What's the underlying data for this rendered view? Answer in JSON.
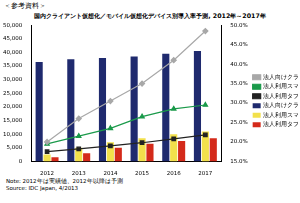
{
  "chart_data": {
    "type": "bar",
    "subtitle": "＜参考資料＞",
    "title": "国内クライアント仮想化／モバイル仮想化デバイス別導入率予測, 2012年～2017年",
    "annotations": [
      "Note: 2012年は実績値、2012年以降は予測",
      "Source: IDC Japan, 4/2013"
    ],
    "categories": [
      "2012",
      "2013",
      "2014",
      "2015",
      "2016",
      "2017"
    ],
    "series": [
      {
        "name": "法人向けクライアント累計稼働台数",
        "type": "bar",
        "color": "#1f2a6e",
        "values": [
          36500,
          37500,
          38000,
          38500,
          39500,
          40500
        ]
      },
      {
        "name": "法人利用スマートフォン加入者数",
        "type": "bar",
        "color": "#f2e04b",
        "values": [
          2500,
          5000,
          7000,
          8500,
          10000,
          11000
        ]
      },
      {
        "name": "法人利用タブレット稼働台数",
        "type": "bar",
        "color": "#d42a1a",
        "values": [
          1500,
          3000,
          5000,
          6500,
          7500,
          8500
        ]
      },
      {
        "name": "法人向けクライアント仮想化率",
        "type": "line",
        "axis": "y2",
        "color": "#a8a8a8",
        "marker": "diamond",
        "values": [
          20,
          26,
          30.5,
          35,
          41,
          48.5
        ]
      },
      {
        "name": "法人利用スマートフォン仮想化率",
        "type": "line",
        "axis": "y2",
        "color": "#1a9a4a",
        "marker": "triangle",
        "values": [
          19.5,
          21.5,
          23.5,
          26.5,
          28.5,
          29.5
        ]
      },
      {
        "name": "法人利用タブレット仮想化率",
        "type": "line",
        "axis": "y2",
        "color": "#222222",
        "marker": "square",
        "values": [
          17.5,
          18.2,
          19,
          19.8,
          20.8,
          21.8
        ]
      }
    ],
    "ylim": [
      0,
      50000
    ],
    "yticks": [
      0,
      {
        "value": 5000,
        "label": "5,000"
      },
      {
        "value": 10000,
        "label": "10,000"
      },
      {
        "value": 15000,
        "label": "15,000"
      },
      {
        "value": 20000,
        "label": "20,000"
      },
      {
        "value": 25000,
        "label": "25,000"
      },
      {
        "value": 30000,
        "label": "30,000"
      },
      {
        "value": 35000,
        "label": "35,000"
      },
      {
        "value": 40000,
        "label": "40,000"
      },
      {
        "value": 45000,
        "label": "45,000"
      },
      {
        "value": 50000,
        "label": "50,000"
      }
    ],
    "y2lim": [
      15,
      50
    ],
    "y2ticks": [
      {
        "value": 15,
        "label": "15.0%"
      },
      {
        "value": 20,
        "label": "20.0%"
      },
      {
        "value": 25,
        "label": "25.0%"
      },
      {
        "value": 30,
        "label": "30.0%"
      },
      {
        "value": 35,
        "label": "35.0%"
      },
      {
        "value": 40,
        "label": "40.0%"
      },
      {
        "value": 45,
        "label": "45.0%"
      },
      {
        "value": 50,
        "label": "50.0%"
      }
    ],
    "grid": false,
    "legend": "right"
  }
}
